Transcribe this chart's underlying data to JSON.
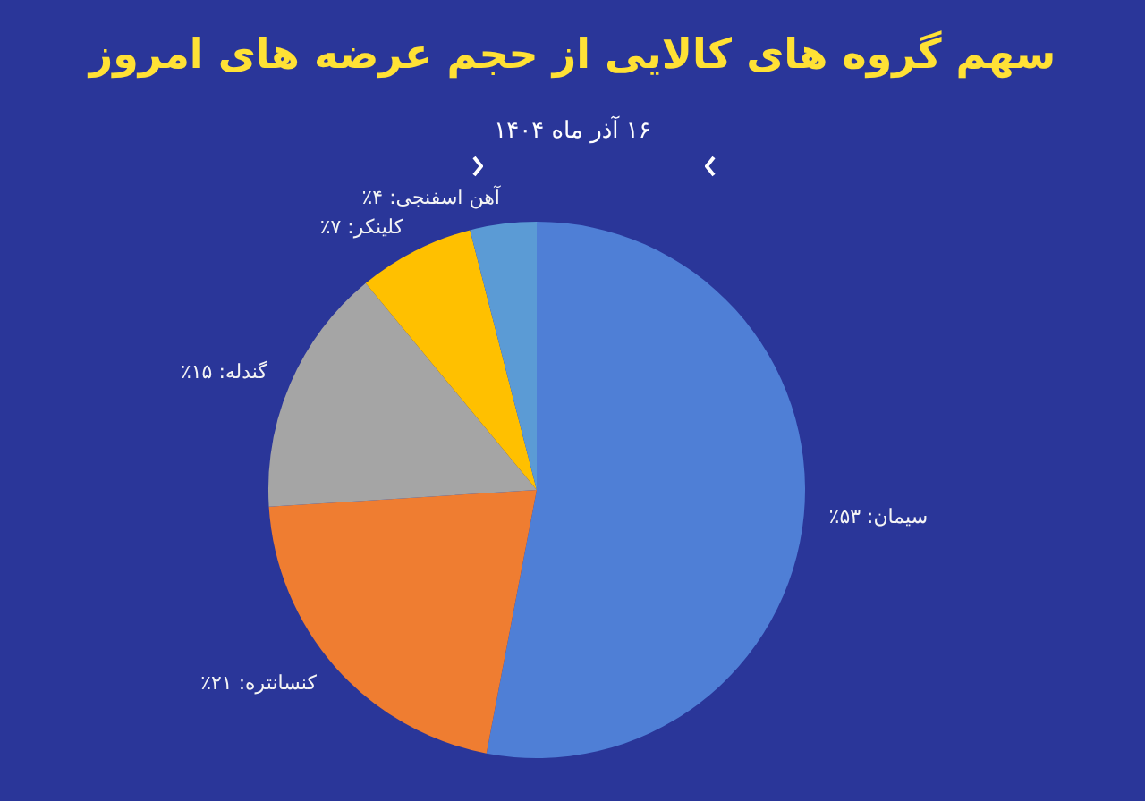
{
  "chart_data": {
    "type": "pie",
    "title": "سهم گروه های کالایی از حجم عرضه های امروز",
    "subtitle": "۱۶ آذر ماه ۱۴۰۴",
    "categories": [
      "سیمان",
      "کنسانتره",
      "گندله",
      "کلینکر",
      "آهن اسفنجی"
    ],
    "values": [
      53,
      21,
      15,
      7,
      4
    ],
    "value_labels": [
      "۵۳٪",
      "۲۱٪",
      "۱۵٪",
      "۷٪",
      "۴٪"
    ],
    "colors": [
      "#4f7fd6",
      "#ef7d31",
      "#a5a5a5",
      "#ffc000",
      "#5b9bd5"
    ],
    "legend": false
  }
}
